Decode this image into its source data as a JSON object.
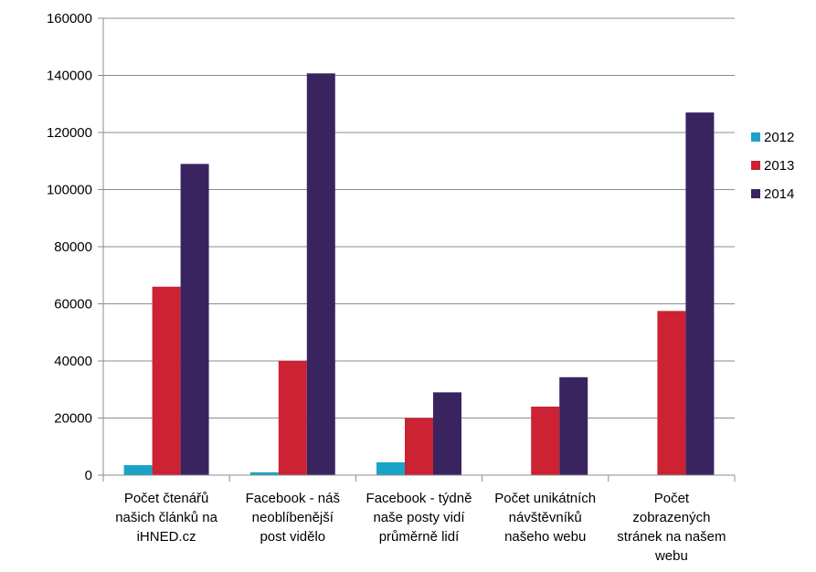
{
  "chart_data": {
    "type": "bar",
    "categories": [
      [
        "Počet čtenářů",
        "našich článků na",
        "iHNED.cz"
      ],
      [
        "Facebook - náš",
        "neoblíbenější",
        "post vidělo"
      ],
      [
        "Facebook - týdně",
        "naše posty vidí",
        "průměrně lidí"
      ],
      [
        "Počet unikátních",
        "návštěvníků",
        "našeho webu"
      ],
      [
        "Počet",
        "zobrazených",
        "stránek na našem",
        "webu"
      ]
    ],
    "series": [
      {
        "name": "2012",
        "color": "#1aa3c8",
        "values": [
          3500,
          1000,
          4500,
          0,
          0
        ]
      },
      {
        "name": "2013",
        "color": "#cc2233",
        "values": [
          66000,
          40000,
          20000,
          24000,
          57500
        ]
      },
      {
        "name": "2014",
        "color": "#3a2460",
        "values": [
          109000,
          140700,
          29000,
          34300,
          127000
        ]
      }
    ],
    "title": "",
    "xlabel": "",
    "ylabel": "",
    "ylim": [
      0,
      160000
    ],
    "yticks": [
      "0",
      "20000",
      "40000",
      "60000",
      "80000",
      "100000",
      "120000",
      "140000",
      "160000"
    ],
    "grid": true,
    "legend_position": "right"
  }
}
